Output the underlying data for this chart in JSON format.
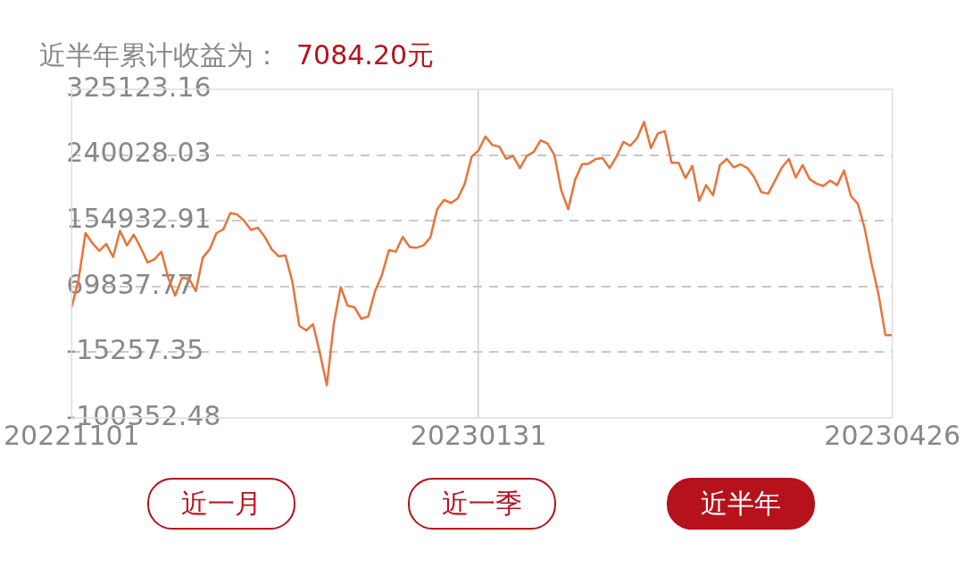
{
  "chart_data": {
    "type": "line",
    "title": "近半年累计收益为：",
    "subtitle": "7084.20元",
    "categories": [
      "20221101",
      null,
      null,
      null,
      null,
      null,
      null,
      null,
      null,
      null,
      null,
      null,
      null,
      null,
      null,
      null,
      null,
      null,
      null,
      null,
      null,
      null,
      null,
      null,
      null,
      null,
      null,
      null,
      null,
      null,
      null,
      null,
      null,
      null,
      null,
      null,
      null,
      null,
      null,
      null,
      null,
      null,
      null,
      null,
      null,
      null,
      null,
      null,
      null,
      null,
      null,
      null,
      null,
      null,
      null,
      null,
      null,
      null,
      null,
      "20230131",
      null,
      null,
      null,
      null,
      null,
      null,
      null,
      null,
      null,
      null,
      null,
      null,
      null,
      null,
      null,
      null,
      null,
      null,
      null,
      null,
      null,
      null,
      null,
      null,
      null,
      null,
      null,
      null,
      null,
      null,
      null,
      null,
      null,
      null,
      null,
      null,
      null,
      null,
      null,
      null,
      null,
      null,
      null,
      null,
      null,
      null,
      null,
      null,
      null,
      null,
      null,
      null,
      null,
      null,
      null,
      null,
      null,
      null,
      null,
      "20230426"
    ],
    "values": [
      43000,
      79000,
      139000,
      126000,
      116000,
      125000,
      108000,
      142000,
      123000,
      137000,
      120000,
      101000,
      105000,
      115000,
      81000,
      58000,
      81000,
      80000,
      64000,
      107000,
      118000,
      139000,
      144000,
      165000,
      163000,
      155000,
      143000,
      146000,
      134000,
      118000,
      109000,
      110000,
      76000,
      19000,
      13000,
      21000,
      -17000,
      -58000,
      21000,
      69000,
      45000,
      43000,
      28000,
      31000,
      64000,
      85000,
      117000,
      115000,
      134000,
      121000,
      120000,
      123000,
      133000,
      170000,
      182000,
      178000,
      184000,
      203000,
      238000,
      246000,
      264000,
      253000,
      251000,
      235000,
      239000,
      223000,
      239000,
      244000,
      259000,
      255000,
      240000,
      194000,
      170000,
      208000,
      228000,
      229000,
      235000,
      236000,
      223000,
      238000,
      257000,
      252000,
      262000,
      283000,
      249000,
      268000,
      271000,
      230000,
      230000,
      210000,
      226000,
      181000,
      201000,
      188000,
      227000,
      235000,
      224000,
      228000,
      223000,
      211000,
      192000,
      190000,
      207000,
      224000,
      235000,
      211000,
      227000,
      209000,
      203000,
      200000,
      207000,
      201000,
      220000,
      187000,
      177000,
      145000,
      99000,
      60000,
      7000,
      7000
    ],
    "color": "#e8743b",
    "ylim": [
      -100352.48,
      325123.16
    ],
    "yticks": [
      325123.16,
      240028.03,
      154932.91,
      69837.77,
      -15257.35,
      -100352.48
    ],
    "grid": true,
    "marker": "none",
    "line_style": "solid",
    "annotations": [
      "近一月",
      "近一季",
      "近半年"
    ]
  }
}
